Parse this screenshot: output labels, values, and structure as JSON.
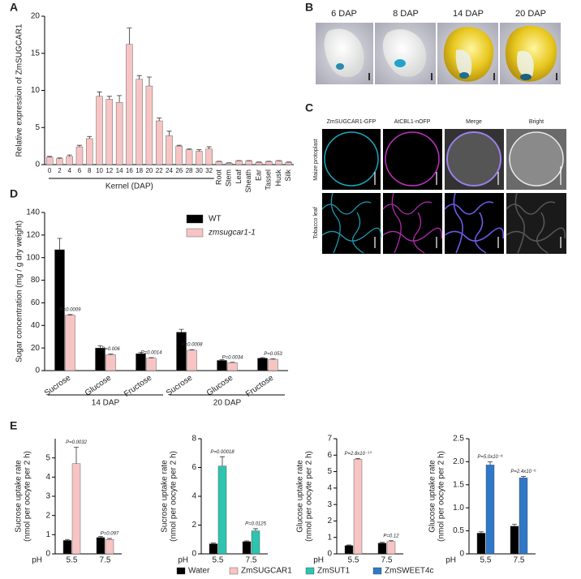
{
  "panel_b": {
    "label": "B",
    "images": [
      "6 DAP",
      "8 DAP",
      "14 DAP",
      "20 DAP"
    ]
  },
  "panel_c": {
    "label": "C",
    "columns": [
      "ZmSUGCAR1-GFP",
      "AtCBL1-nOFP",
      "Merge",
      "Bright"
    ],
    "rows": [
      "Maize protoplast",
      "Tobacco leaf"
    ]
  },
  "legend": [
    {
      "name": "Water",
      "color": "#000000"
    },
    {
      "name": "ZmSUGCAR1",
      "color": "#f7c4c4"
    },
    {
      "name": "ZmSUT1",
      "color": "#2ec4b0"
    },
    {
      "name": "ZmSWEET4c",
      "color": "#2f78c8"
    }
  ],
  "chart_data": [
    {
      "type": "bar",
      "panel": "A",
      "ylabel": "Relative expression of ZmSUGCAR1",
      "xlabel": "Kernel (DAP)",
      "categories": [
        "0",
        "2",
        "4",
        "6",
        "8",
        "10",
        "12",
        "14",
        "16",
        "18",
        "20",
        "22",
        "24",
        "26",
        "28",
        "30",
        "32",
        "Root",
        "Stem",
        "Leaf",
        "Sheath",
        "Ear",
        "Tassel",
        "Husk",
        "Silk"
      ],
      "values": [
        1.0,
        0.8,
        1.1,
        2.4,
        3.5,
        9.2,
        8.8,
        8.4,
        16.2,
        11.5,
        10.6,
        5.9,
        3.9,
        2.5,
        2.0,
        1.8,
        2.1,
        0.4,
        0.2,
        0.5,
        0.5,
        0.3,
        0.4,
        0.5,
        0.3
      ],
      "errors": [
        0.1,
        0.1,
        0.2,
        0.2,
        0.3,
        0.6,
        0.4,
        0.9,
        2.2,
        0.5,
        1.2,
        0.4,
        0.6,
        0.1,
        0.1,
        0.2,
        0.3,
        0.05,
        0.05,
        0.05,
        0.05,
        0.05,
        0.05,
        0.05,
        0.05
      ],
      "color": "#f7c4c4",
      "ylim": [
        0,
        20
      ],
      "yticks": [
        0,
        5,
        10,
        15,
        20
      ]
    },
    {
      "type": "bar",
      "panel": "D",
      "ylabel": "Sugar concentration (mg / g dry weight)",
      "categories": [
        "Sucrose",
        "Glucose",
        "Fructose",
        "Sucrose",
        "Glucose",
        "Fructose"
      ],
      "groups": [
        "14 DAP",
        "20 DAP"
      ],
      "series": [
        {
          "name": "WT",
          "color": "#000000",
          "values": [
            107,
            20,
            15,
            34,
            9,
            11
          ],
          "errors": [
            10,
            2,
            1,
            2.5,
            0.6,
            0.5
          ]
        },
        {
          "name": "zmsugcar1-1",
          "color": "#f7c4c4",
          "values": [
            49,
            14,
            11,
            18,
            7,
            10
          ],
          "errors": [
            0.6,
            0.6,
            0.5,
            0.6,
            0.3,
            0.5
          ]
        }
      ],
      "annotations": [
        "P=0.0009",
        "P=0.006",
        "P=0.0014",
        "P=0.0008",
        "P=0.0034",
        "P=0.053"
      ],
      "ylim": [
        0,
        140
      ],
      "yticks": [
        0,
        20,
        40,
        60,
        80,
        100,
        120,
        140
      ]
    },
    {
      "type": "bar",
      "panel": "E",
      "ylabel": [
        "Sucrose uptake rate",
        "(nmol per oocyte per 2 h)"
      ],
      "xlabel": "pH",
      "categories": [
        "5.5",
        "7.5"
      ],
      "series": [
        {
          "color": "#000000",
          "values": [
            0.7,
            0.85
          ],
          "errors": [
            0.05,
            0.05
          ]
        },
        {
          "color": "#f7c4c4",
          "values": [
            4.7,
            0.75
          ],
          "errors": [
            0.85,
            0.05
          ]
        }
      ],
      "annotations": [
        "P=0.0032",
        "P=0.097"
      ],
      "ylim": [
        0,
        6
      ],
      "yticks": [
        0,
        1,
        2,
        3,
        4,
        5
      ]
    },
    {
      "type": "bar",
      "ylabel": [
        "Sucrose uptake rate",
        "(nmol per oocyte per 2 h)"
      ],
      "xlabel": "pH",
      "categories": [
        "5.5",
        "7.5"
      ],
      "series": [
        {
          "color": "#000000",
          "values": [
            0.7,
            0.85
          ],
          "errors": [
            0.05,
            0.05
          ]
        },
        {
          "color": "#2ec4b0",
          "values": [
            6.1,
            1.6
          ],
          "errors": [
            0.65,
            0.15
          ]
        }
      ],
      "annotations": [
        "P=0.00018",
        "P=0.0125"
      ],
      "ylim": [
        0,
        8
      ],
      "yticks": [
        0,
        2,
        4,
        6,
        8
      ]
    },
    {
      "type": "bar",
      "ylabel": [
        "Glucose uptake rate",
        "(nmol per oocyte per 2 h)"
      ],
      "xlabel": "pH",
      "categories": [
        "5.5",
        "7.5"
      ],
      "series": [
        {
          "color": "#000000",
          "values": [
            0.5,
            0.65
          ],
          "errors": [
            0.04,
            0.05
          ]
        },
        {
          "color": "#f7c4c4",
          "values": [
            5.75,
            0.75
          ],
          "errors": [
            0.05,
            0.05
          ]
        }
      ],
      "annotations": [
        "P=2.8x10⁻¹⁰",
        "P=0.12"
      ],
      "ylim": [
        0,
        7
      ],
      "yticks": [
        0,
        1,
        2,
        3,
        4,
        5,
        6,
        7
      ]
    },
    {
      "type": "bar",
      "ylabel": [
        "Glucose uptake rate",
        "(nmol per oocyte per 2 h)"
      ],
      "xlabel": "pH",
      "categories": [
        "5.5",
        "7.5"
      ],
      "series": [
        {
          "color": "#000000",
          "values": [
            0.45,
            0.6
          ],
          "errors": [
            0.03,
            0.04
          ]
        },
        {
          "color": "#2f78c8",
          "values": [
            1.93,
            1.65
          ],
          "errors": [
            0.07,
            0.03
          ]
        }
      ],
      "annotations": [
        "P=5.0x10⁻⁸",
        "P=2.4x10⁻⁶"
      ],
      "ylim": [
        0,
        2.5
      ],
      "yticks": [
        0,
        0.5,
        {
          "value": 1,
          "label": "1.0"
        },
        1.5,
        {
          "value": 2,
          "label": "2.0"
        },
        2.5
      ]
    }
  ]
}
